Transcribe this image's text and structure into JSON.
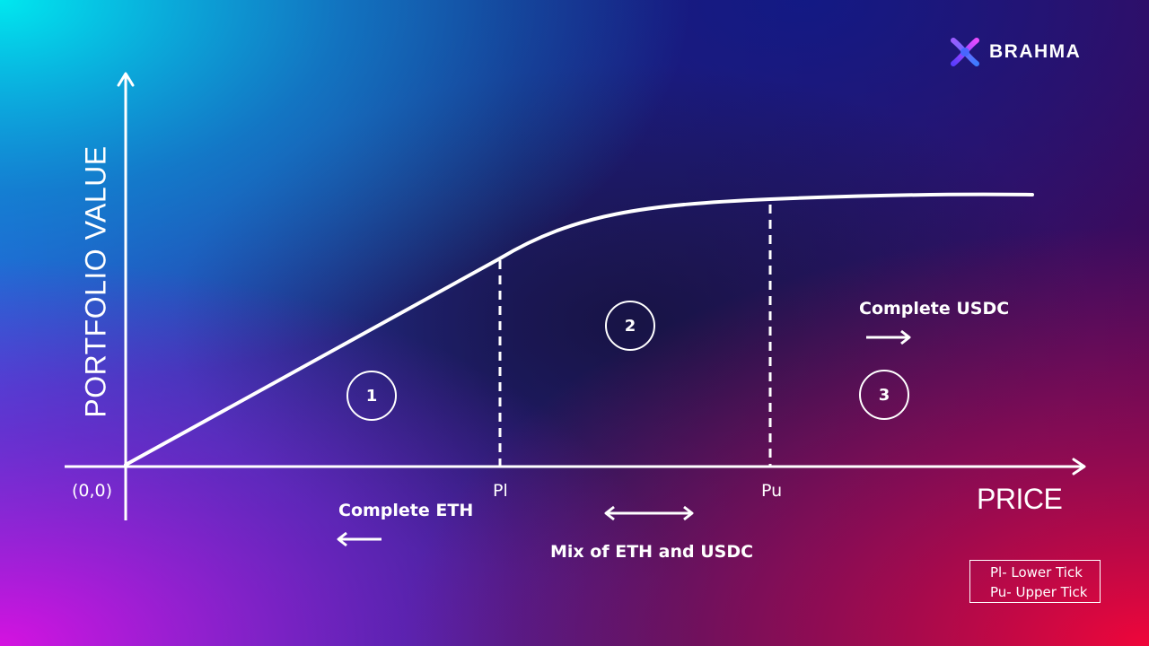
{
  "brand": {
    "name": "BRAHMA",
    "logo_icon": "brahma-x-logo-icon"
  },
  "axes": {
    "y_label": "PORTFOLIO VALUE",
    "x_label": "PRICE",
    "origin_label": "(0,0)"
  },
  "ticks": {
    "lower": "Pl",
    "upper": "Pu"
  },
  "zones": [
    {
      "number": "1",
      "description": "Complete ETH",
      "arrow": "left"
    },
    {
      "number": "2",
      "description": "Mix of ETH and USDC",
      "arrow": "both"
    },
    {
      "number": "3",
      "description": "Complete USDC",
      "arrow": "right"
    }
  ],
  "legend": {
    "lines": [
      "Pl- Lower Tick",
      "Pu- Upper Tick"
    ]
  },
  "colors": {
    "gradient_top_left": "#00e5ee",
    "gradient_bottom_left": "#c213d6",
    "gradient_center": "#1b1a5a",
    "gradient_bottom_right": "#e3043f",
    "line": "#ffffff"
  }
}
